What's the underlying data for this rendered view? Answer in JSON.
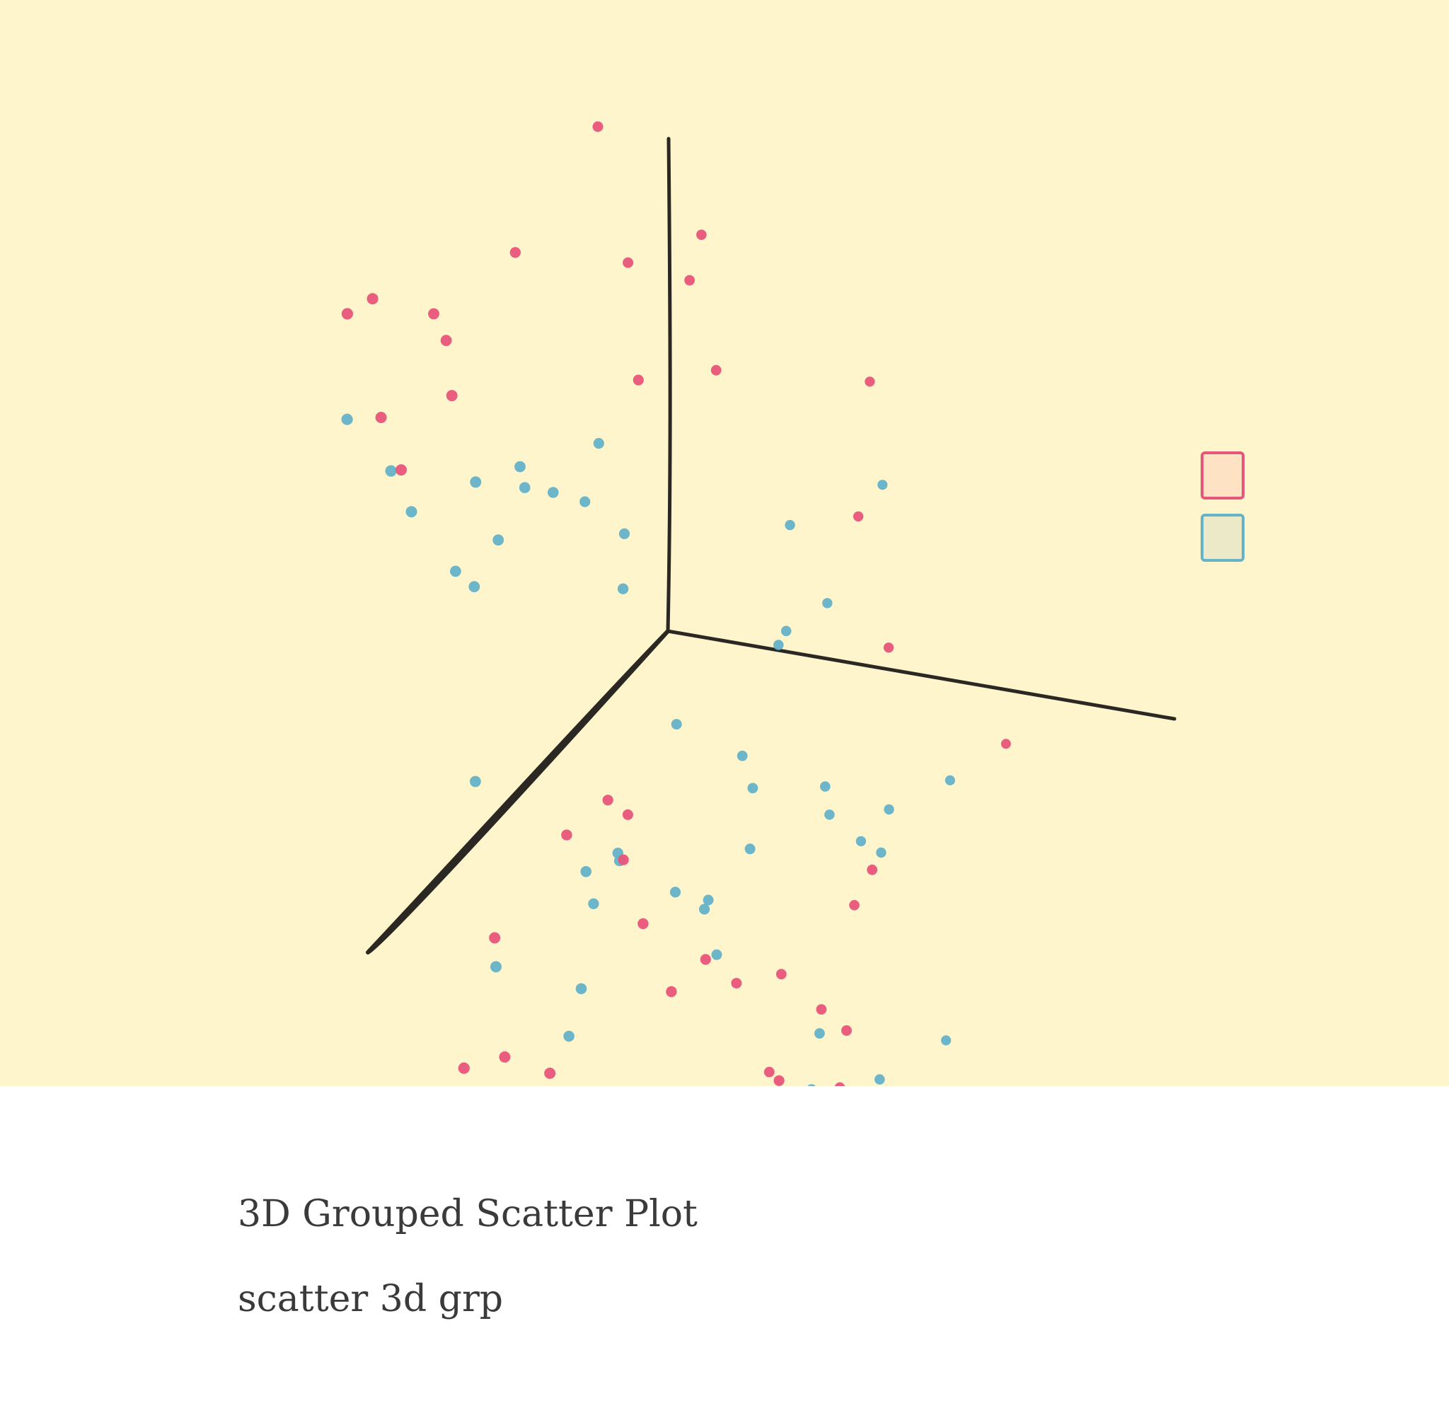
{
  "chart_data": {
    "type": "scatter",
    "title": "3D Grouped Scatter Plot",
    "subtitle": "scatter 3d grp",
    "xlabel": "",
    "ylabel": "",
    "zlabel": "",
    "grid": false,
    "legend_position": "right",
    "background_color": "#fff5cc",
    "axis_color": "#2b2722",
    "series": [
      {
        "color": "#e8557a",
        "legend_fill": "#fde2c4",
        "points": [
          [
            1.05,
            0.75,
            -0.86
          ],
          [
            0.78,
            0.86,
            -0.73
          ],
          [
            1.54,
            1.38,
            -0.76
          ],
          [
            1.04,
            0.61,
            -1.27
          ],
          [
            1.93,
            1.09,
            -1.25
          ],
          [
            1.56,
            0.88,
            -1.54
          ],
          [
            -0.46,
            -0.51,
            -1.16
          ],
          [
            -0.08,
            0.54,
            -0.49
          ],
          [
            -0.16,
            0.13,
            -0.63
          ],
          [
            0.02,
            0.33,
            -0.71
          ],
          [
            0.88,
            0.73,
            -0.76
          ],
          [
            1.57,
            1.46,
            -0.39
          ],
          [
            0.08,
            1.29,
            -0.39
          ],
          [
            0.89,
            1.48,
            -0.34
          ],
          [
            1.57,
            1.91,
            -0.3
          ],
          [
            0.03,
            1.41,
            -0.85
          ],
          [
            0.76,
            2.07,
            -0.31
          ],
          [
            0.25,
            1.51,
            -0.7
          ],
          [
            0.5,
            1.01,
            -0.44
          ],
          [
            1.6,
            1.34,
            0.19
          ],
          [
            0.58,
            -0.29,
            0.38
          ],
          [
            1.53,
            0.33,
            0.03
          ],
          [
            -0.07,
            -0.44,
            0.76
          ],
          [
            0.67,
            0.88,
            -0.64
          ],
          [
            -1.02,
            0.19,
            0.81
          ],
          [
            1.05,
            0.53,
            -0.58
          ],
          [
            -0.65,
            -0.08,
            1.37
          ],
          [
            -0.45,
            0.68,
            1.32
          ],
          [
            -1.16,
            0.01,
            1.15
          ],
          [
            -0.84,
            0.06,
            1.07
          ],
          [
            -0.84,
            0.36,
            0.74
          ],
          [
            -0.67,
            0.43,
            1.45
          ],
          [
            -0.94,
            0.55,
            1.48
          ],
          [
            0.15,
            0.45,
            1.34
          ],
          [
            -0.3,
            -0.73,
            1.08
          ],
          [
            0.59,
            -0.35,
            0.89
          ],
          [
            -0.11,
            -0.33,
            1.19
          ],
          [
            -0.43,
            -0.46,
            1.12
          ],
          [
            0.99,
            0.2,
            0.24
          ],
          [
            0.72,
            0.54,
            -1.31
          ],
          [
            -0.62,
            -0.58,
            1.56
          ]
        ]
      },
      {
        "color": "#65b2c9",
        "legend_fill": "#ece9c8",
        "points": [
          [
            0.65,
            0.55,
            -0.41
          ],
          [
            0.33,
            0.88,
            -0.3
          ],
          [
            0.78,
            0.24,
            -0.45
          ],
          [
            0.05,
            0.58,
            -0.72
          ],
          [
            0.43,
            0.23,
            -0.28
          ],
          [
            0.95,
            0.13,
            -0.47
          ],
          [
            0.6,
            0.77,
            -0.52
          ],
          [
            1.4,
            0.51,
            -1.08
          ],
          [
            0.02,
            1.18,
            -0.59
          ],
          [
            0.3,
            0.84,
            -0.3
          ],
          [
            0.56,
            0.62,
            -0.81
          ],
          [
            0.74,
            1.26,
            -1.01
          ],
          [
            0.16,
            0.93,
            -1.01
          ],
          [
            1.13,
            0.95,
            -1.04
          ],
          [
            0.18,
            0.85,
            -0.39
          ],
          [
            -0.31,
            0.76,
            -0.17
          ],
          [
            0.42,
            0.44,
            -0.73
          ],
          [
            0.56,
            0.38,
            -0.29
          ],
          [
            0.58,
            0.93,
            -0.35
          ],
          [
            1.38,
            1.32,
            -1.36
          ],
          [
            0.09,
            0.73,
            -0.96
          ],
          [
            0.2,
            0.28,
            -0.16
          ],
          [
            1.15,
            0.53,
            -1.27
          ],
          [
            0.84,
            0.37,
            -0.24
          ],
          [
            1.12,
            0.88,
            -0.86
          ],
          [
            0.96,
            0.86,
            -1.21
          ],
          [
            0.94,
            0.3,
            -0.49
          ],
          [
            0.57,
            -0.1,
            0.15
          ],
          [
            1.12,
            0.01,
            -0.4
          ],
          [
            0.64,
            -0.35,
            0.48
          ],
          [
            0.99,
            0.25,
            -0.56
          ],
          [
            0.19,
            0.62,
            0.61
          ],
          [
            -0.19,
            0.14,
            0.82
          ],
          [
            -0.34,
            0.38,
            0.77
          ],
          [
            -0.11,
            0.8,
            1.17
          ],
          [
            -0.08,
            0.63,
            0.96
          ],
          [
            -0.56,
            0.47,
            0.45
          ],
          [
            -0.61,
            0.68,
            0.82
          ],
          [
            -0.51,
            0.43,
            0.37
          ],
          [
            -0.31,
            0.03,
            0.49
          ],
          [
            -0.59,
            0.85,
            1.1
          ],
          [
            -0.35,
            0.54,
            0.66
          ],
          [
            -0.22,
            0.91,
            1.16
          ],
          [
            -0.84,
            0.72,
            1.18
          ],
          [
            0.49,
            0.09,
            0.09
          ],
          [
            0.18,
            -0.51,
            0.13
          ],
          [
            -0.16,
            0.02,
            0.38
          ],
          [
            0.55,
            0.14,
            0.19
          ]
        ]
      }
    ]
  }
}
